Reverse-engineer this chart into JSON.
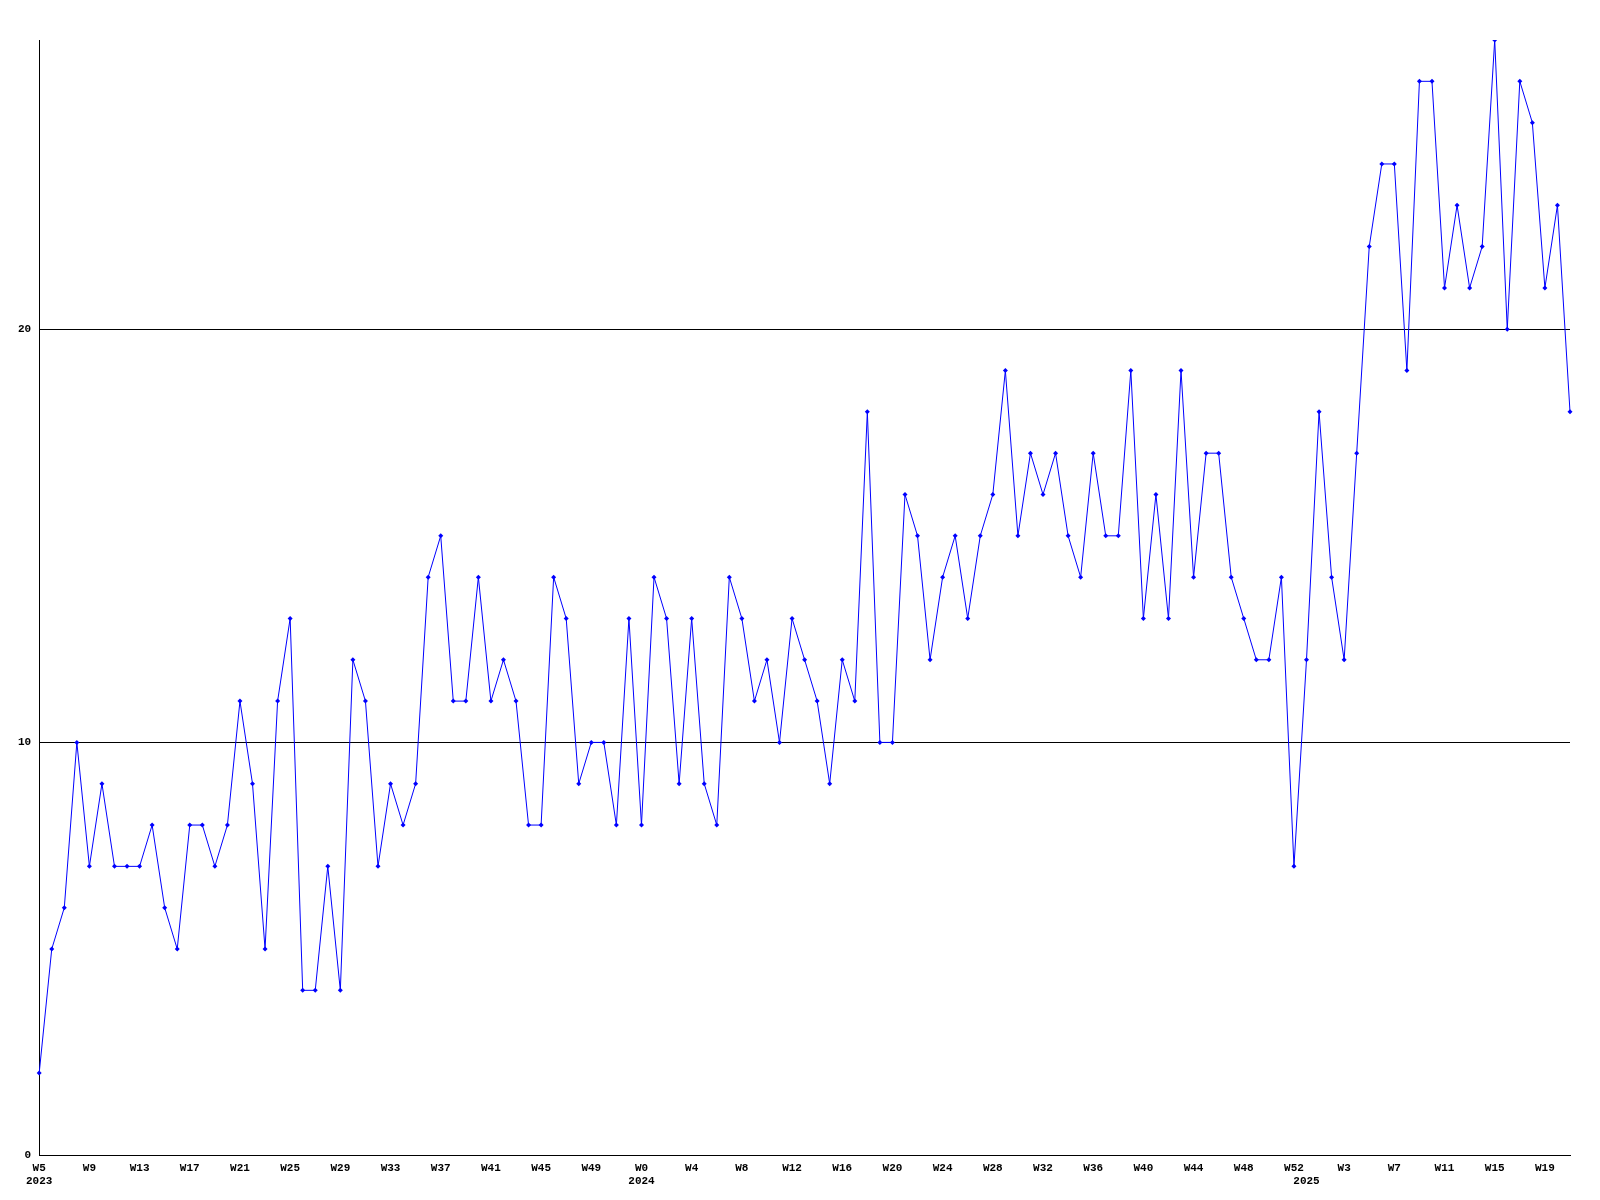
{
  "chart_data": {
    "type": "line",
    "categories": [
      "W5\n2023",
      null,
      null,
      null,
      "W9",
      null,
      null,
      null,
      "W13",
      null,
      null,
      null,
      "W17",
      null,
      null,
      null,
      "W21",
      null,
      null,
      null,
      "W25",
      null,
      null,
      null,
      "W29",
      null,
      null,
      null,
      "W33",
      null,
      null,
      null,
      "W37",
      null,
      null,
      null,
      "W41",
      null,
      null,
      null,
      "W45",
      null,
      null,
      null,
      "W49",
      null,
      null,
      null,
      "W0\n2024",
      null,
      null,
      null,
      "W4",
      null,
      null,
      null,
      "W8",
      null,
      null,
      null,
      "W12",
      null,
      null,
      null,
      "W16",
      null,
      null,
      null,
      "W20",
      null,
      null,
      null,
      "W24",
      null,
      null,
      null,
      "W28",
      null,
      null,
      null,
      "W32",
      null,
      null,
      null,
      "W36",
      null,
      null,
      null,
      "W40",
      null,
      null,
      null,
      "W44",
      null,
      null,
      null,
      "W48",
      null,
      null,
      null,
      "W52",
      "\n2025",
      null,
      null,
      "W3",
      null,
      null,
      null,
      "W7",
      null,
      null,
      null,
      "W11",
      null,
      null,
      null,
      "W15",
      null,
      null,
      null,
      "W19",
      null,
      null
    ],
    "series": [
      {
        "color": "#0000ff",
        "values": [
          2,
          5,
          6,
          10,
          7,
          9,
          7,
          7,
          7,
          8,
          6,
          5,
          8,
          8,
          7,
          8,
          11,
          9,
          5,
          11,
          13,
          4,
          4,
          7,
          4,
          12,
          11,
          7,
          9,
          8,
          9,
          14,
          15,
          11,
          11,
          14,
          11,
          12,
          11,
          8,
          8,
          14,
          13,
          9,
          10,
          10,
          8,
          13,
          8,
          14,
          13,
          9,
          13,
          9,
          8,
          14,
          13,
          11,
          12,
          10,
          13,
          12,
          11,
          9,
          12,
          11,
          18,
          10,
          10,
          16,
          15,
          12,
          14,
          15,
          13,
          15,
          16,
          19,
          15,
          17,
          16,
          17,
          15,
          14,
          17,
          15,
          15,
          19,
          13,
          16,
          13,
          19,
          14,
          17,
          17,
          14,
          13,
          12,
          12,
          14,
          7,
          12,
          18,
          14,
          12,
          17,
          22,
          24,
          24,
          19,
          26,
          26,
          21,
          23,
          21,
          22,
          27,
          20,
          26,
          25,
          21,
          23,
          18
        ]
      }
    ],
    "ylim": [
      0,
      27
    ],
    "yticks": [
      0,
      10,
      20
    ],
    "grid": "y",
    "legend": false,
    "marker": "diamond",
    "line_style": "solid"
  }
}
